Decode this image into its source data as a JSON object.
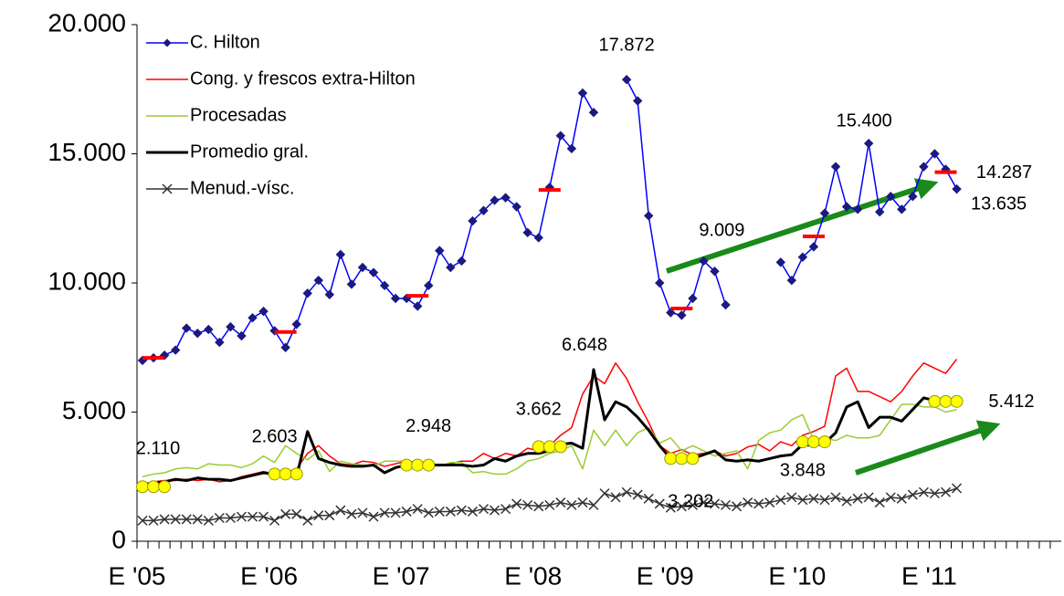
{
  "chart_data": {
    "type": "line",
    "categories": [
      "E '05",
      null,
      null,
      null,
      null,
      null,
      null,
      null,
      null,
      null,
      null,
      null,
      "E '06",
      null,
      null,
      null,
      null,
      null,
      null,
      null,
      null,
      null,
      null,
      null,
      "E '07",
      null,
      null,
      null,
      null,
      null,
      null,
      null,
      null,
      null,
      null,
      null,
      "E '08",
      null,
      null,
      null,
      null,
      null,
      null,
      null,
      null,
      null,
      null,
      null,
      "E '09",
      null,
      null,
      null,
      null,
      null,
      null,
      null,
      null,
      null,
      null,
      null,
      "E '10",
      null,
      null,
      null,
      null,
      null,
      null,
      null,
      null,
      null,
      null,
      null,
      "E '11",
      null,
      null,
      null,
      null,
      null,
      null,
      null,
      null,
      null,
      null,
      null
    ],
    "ylim": [
      0,
      20000
    ],
    "yticks": [
      0,
      {
        "value": 5000,
        "label": "5.000"
      },
      {
        "value": 10000,
        "label": "10.000"
      },
      {
        "value": 15000,
        "label": "15.000"
      },
      {
        "value": 20000,
        "label": "20.000"
      }
    ],
    "legend": "top-left",
    "series": [
      {
        "name": "C. Hilton",
        "color": "#0000ff",
        "marker": "diamond",
        "marker_color": "#1a1a80",
        "width": 1.5,
        "values": [
          7000,
          7100,
          7200,
          7400,
          8250,
          8050,
          8200,
          7700,
          8300,
          7950,
          8650,
          8900,
          8150,
          7500,
          8400,
          9600,
          10100,
          9550,
          11100,
          9950,
          10600,
          10400,
          9900,
          9400,
          9400,
          9100,
          9900,
          11250,
          10600,
          10850,
          12400,
          12800,
          13200,
          13300,
          12950,
          11950,
          11750,
          13700,
          15700,
          15200,
          17350,
          16600,
          null,
          null,
          17872,
          17050,
          12600,
          10000,
          8850,
          8750,
          9400,
          10850,
          10450,
          9150,
          null,
          null,
          null,
          null,
          10800,
          10100,
          11000,
          11400,
          12700,
          14500,
          12950,
          12850,
          15400,
          12750,
          13350,
          12850,
          13350,
          14500,
          15000,
          14400,
          13635,
          null,
          null,
          null,
          null,
          null,
          null,
          null,
          null,
          null
        ],
        "value_labels": [
          null,
          null,
          null,
          null,
          null,
          null,
          null,
          null,
          null,
          null,
          null,
          null,
          null,
          null,
          null,
          null,
          null,
          null,
          null,
          null,
          null,
          null,
          null,
          null,
          null,
          null,
          null,
          null,
          null,
          null,
          null,
          null,
          null,
          null,
          null,
          null,
          null,
          null,
          null,
          null,
          null,
          null,
          null,
          null,
          "17.872",
          null,
          null,
          null,
          null,
          null,
          null,
          null,
          null,
          null,
          null,
          null,
          null,
          null,
          null,
          null,
          null,
          null,
          null,
          null,
          null,
          null,
          "15.400",
          null,
          null,
          null,
          null,
          null,
          null,
          null,
          "13.635",
          null,
          null,
          null,
          null,
          null,
          null,
          null,
          null,
          null
        ]
      },
      {
        "name": "Cong. y frescos extra-Hilton",
        "color": "#ff0000",
        "marker": "none",
        "width": 1.5,
        "values": [
          2200,
          2300,
          2350,
          2350,
          2400,
          2350,
          2400,
          2300,
          2350,
          2500,
          2600,
          2700,
          2600,
          2650,
          2800,
          3400,
          3700,
          3300,
          3000,
          2950,
          3100,
          3050,
          2900,
          3000,
          3100,
          3050,
          3000,
          2950,
          3000,
          3100,
          3100,
          3400,
          3200,
          3400,
          3300,
          3600,
          3500,
          3700,
          4100,
          4400,
          5700,
          6400,
          6100,
          6900,
          6300,
          5400,
          4600,
          3700,
          3400,
          3550,
          3350,
          3400,
          3500,
          3300,
          3400,
          3650,
          3750,
          3500,
          3850,
          3700,
          4100,
          4250,
          4450,
          6400,
          6700,
          5800,
          5800,
          5600,
          5400,
          5800,
          6400,
          6900,
          6700,
          6500,
          7050,
          null,
          null,
          null,
          null,
          null,
          null,
          null,
          null,
          null
        ]
      },
      {
        "name": "Procesadas",
        "color": "#99cc33",
        "marker": "none",
        "width": 1.5,
        "values": [
          2500,
          2600,
          2650,
          2800,
          2850,
          2800,
          3000,
          2950,
          2950,
          2850,
          3000,
          3300,
          3050,
          3700,
          3400,
          3150,
          3500,
          2700,
          3100,
          3000,
          2950,
          2900,
          3100,
          3100,
          3100,
          3000,
          3050,
          2900,
          3050,
          3050,
          2650,
          2700,
          2600,
          2600,
          2800,
          3100,
          3200,
          3400,
          3500,
          3700,
          2800,
          4300,
          3700,
          4300,
          3700,
          4200,
          4400,
          3800,
          4000,
          3500,
          3700,
          3500,
          3300,
          3400,
          3500,
          2800,
          3900,
          4200,
          4300,
          4700,
          4900,
          3900,
          4000,
          3900,
          4100,
          4000,
          4000,
          4100,
          4700,
          5300,
          5300,
          5200,
          5200,
          5000,
          5100,
          null,
          null,
          null,
          null,
          null,
          null,
          null,
          null,
          null
        ]
      },
      {
        "name": "Promedio gral.",
        "color": "#000000",
        "marker": "none",
        "width": 3,
        "values": [
          2200,
          2250,
          2300,
          2400,
          2350,
          2450,
          2400,
          2400,
          2350,
          2450,
          2550,
          2650,
          2600,
          2550,
          2500,
          4250,
          3200,
          3050,
          2950,
          2900,
          2900,
          2950,
          2650,
          2850,
          2950,
          2950,
          2950,
          2950,
          2950,
          2950,
          2900,
          2950,
          3200,
          3100,
          3300,
          3400,
          3400,
          3500,
          3750,
          3800,
          3600,
          6648,
          4700,
          5400,
          5200,
          4800,
          4300,
          3700,
          3200,
          3300,
          3200,
          3350,
          3500,
          3150,
          3100,
          3150,
          3100,
          3200,
          3300,
          3350,
          3750,
          3700,
          3800,
          4200,
          5200,
          5400,
          4400,
          4800,
          4800,
          4650,
          5100,
          5550,
          5450,
          5400,
          5400,
          null,
          null,
          null,
          null,
          null,
          null,
          null,
          null,
          null
        ],
        "value_labels": [
          null,
          null,
          null,
          null,
          null,
          null,
          null,
          null,
          null,
          null,
          null,
          null,
          null,
          null,
          null,
          null,
          null,
          null,
          null,
          null,
          null,
          null,
          null,
          null,
          null,
          null,
          null,
          null,
          null,
          null,
          null,
          null,
          null,
          null,
          null,
          null,
          null,
          null,
          null,
          null,
          null,
          "6.648",
          null,
          null,
          null,
          null,
          null,
          null,
          null,
          null,
          null,
          null,
          null,
          null,
          null,
          null,
          null,
          null,
          null,
          null,
          null,
          null,
          null,
          null,
          null,
          null,
          null,
          null,
          null,
          null,
          null,
          null,
          null,
          null,
          null,
          null,
          null,
          null,
          null,
          null,
          null,
          null,
          null,
          null
        ]
      },
      {
        "name": "Menud.-vísc.",
        "color": "#333333",
        "marker": "x",
        "width": 1.5,
        "values": [
          800,
          800,
          850,
          850,
          850,
          850,
          800,
          900,
          900,
          950,
          950,
          950,
          800,
          1050,
          1050,
          800,
          1000,
          1000,
          1200,
          1050,
          1100,
          950,
          1100,
          1100,
          1150,
          1250,
          1100,
          1150,
          1150,
          1200,
          1150,
          1250,
          1200,
          1250,
          1450,
          1400,
          1350,
          1400,
          1500,
          1400,
          1500,
          1400,
          1850,
          1700,
          1900,
          1800,
          1650,
          1450,
          1300,
          1350,
          1400,
          1500,
          1450,
          1400,
          1350,
          1500,
          1450,
          1500,
          1600,
          1700,
          1600,
          1650,
          1600,
          1700,
          1550,
          1650,
          1700,
          1500,
          1700,
          1650,
          1800,
          1900,
          1850,
          1900,
          2050,
          null,
          null,
          null,
          null,
          null,
          null,
          null,
          null,
          null
        ]
      },
      {
        "color": "#ff0000",
        "marker": "dash",
        "values": [
          null,
          7100,
          null,
          null,
          null,
          null,
          null,
          null,
          null,
          null,
          null,
          null,
          null,
          8100,
          null,
          null,
          null,
          null,
          null,
          null,
          null,
          null,
          null,
          null,
          null,
          9500,
          null,
          null,
          null,
          null,
          null,
          null,
          null,
          null,
          null,
          null,
          null,
          13600,
          null,
          null,
          null,
          null,
          null,
          null,
          null,
          null,
          null,
          null,
          null,
          9009,
          null,
          null,
          null,
          null,
          null,
          null,
          null,
          null,
          null,
          null,
          null,
          11800,
          null,
          null,
          null,
          null,
          null,
          null,
          null,
          null,
          null,
          null,
          null,
          14287,
          null,
          null,
          null,
          null,
          null,
          null,
          null,
          null,
          null,
          null
        ],
        "value_labels": [
          null,
          null,
          null,
          null,
          null,
          null,
          null,
          null,
          null,
          null,
          null,
          null,
          null,
          null,
          null,
          null,
          null,
          null,
          null,
          null,
          null,
          null,
          null,
          null,
          null,
          null,
          null,
          null,
          null,
          null,
          null,
          null,
          null,
          null,
          null,
          null,
          null,
          null,
          null,
          null,
          null,
          null,
          null,
          null,
          null,
          null,
          null,
          null,
          null,
          "9.009",
          null,
          null,
          null,
          null,
          null,
          null,
          null,
          null,
          null,
          null,
          null,
          null,
          null,
          null,
          null,
          null,
          null,
          null,
          null,
          null,
          null,
          null,
          null,
          "14.287",
          null,
          null,
          null,
          null,
          null,
          null,
          null,
          null,
          null,
          null
        ]
      },
      {
        "color": "#ffff00",
        "marker": "circle",
        "marker_color": "#999900",
        "values": [
          2110,
          2110,
          2110,
          null,
          null,
          null,
          null,
          null,
          null,
          null,
          null,
          null,
          2603,
          2603,
          2603,
          null,
          null,
          null,
          null,
          null,
          null,
          null,
          null,
          null,
          2948,
          2948,
          2948,
          null,
          null,
          null,
          null,
          null,
          null,
          null,
          null,
          null,
          3662,
          3662,
          3662,
          null,
          null,
          null,
          null,
          null,
          null,
          null,
          null,
          null,
          3202,
          3202,
          3202,
          null,
          null,
          null,
          null,
          null,
          null,
          null,
          null,
          null,
          3848,
          3848,
          3848,
          null,
          null,
          null,
          null,
          null,
          null,
          null,
          null,
          null,
          5412,
          5412,
          5412,
          null,
          null,
          null,
          null,
          null,
          null,
          null,
          null,
          null
        ],
        "value_labels": [
          "2.110",
          null,
          null,
          null,
          null,
          null,
          null,
          null,
          null,
          null,
          null,
          null,
          "2.603",
          null,
          null,
          null,
          null,
          null,
          null,
          null,
          null,
          null,
          null,
          null,
          "2.948",
          null,
          null,
          null,
          null,
          null,
          null,
          null,
          null,
          null,
          null,
          null,
          "3.662",
          null,
          null,
          null,
          null,
          null,
          null,
          null,
          null,
          null,
          null,
          null,
          "3.202",
          null,
          null,
          null,
          null,
          null,
          null,
          null,
          null,
          null,
          null,
          null,
          "3.848",
          null,
          null,
          null,
          null,
          null,
          null,
          null,
          null,
          null,
          null,
          null,
          "5.412",
          null,
          null,
          null,
          null,
          null,
          null,
          null,
          null,
          null,
          null,
          null
        ]
      }
    ]
  }
}
